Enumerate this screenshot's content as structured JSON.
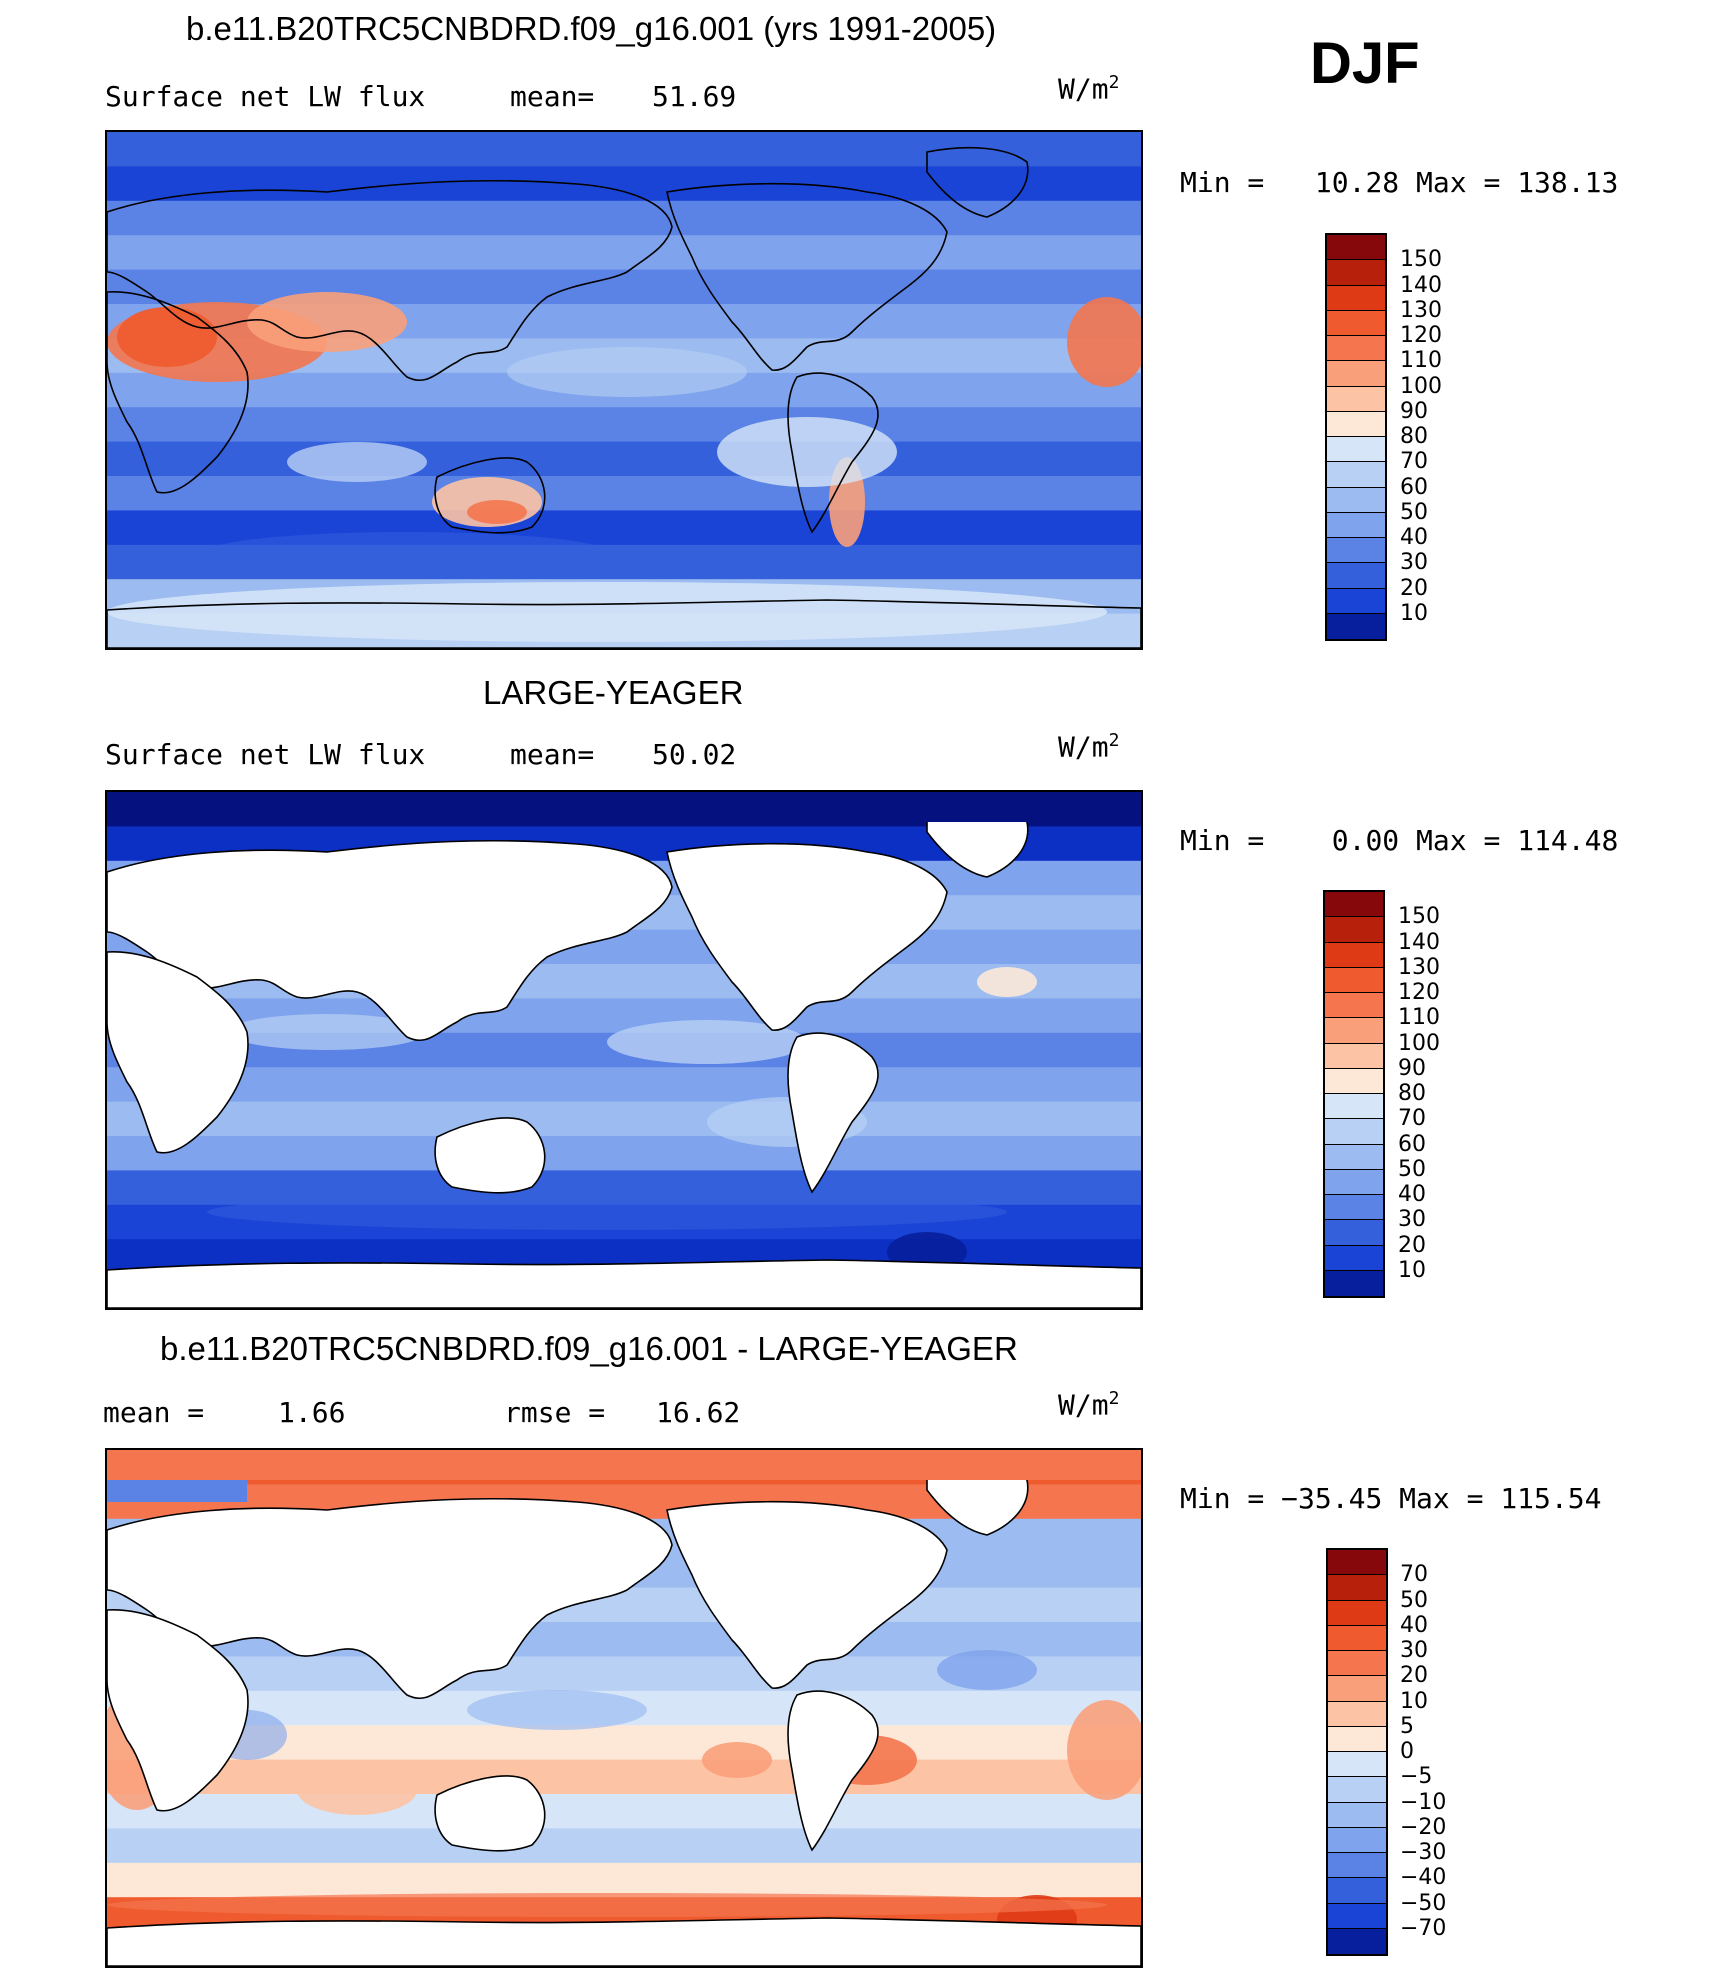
{
  "header": {
    "top_title": "b.e11.B20TRC5CNBDRD.f09_g16.001 (yrs 1991-2005)",
    "season": "DJF"
  },
  "colors": {
    "pos": [
      "#fde8d8",
      "#fcc3a4",
      "#f9a07a",
      "#f4754e",
      "#ef5a2e",
      "#de3a16",
      "#b7200a",
      "#86080a"
    ],
    "neg": [
      "#d6e6f8",
      "#b8d0f4",
      "#9cbcf1",
      "#7fa3ec",
      "#5b83e6",
      "#3460dc",
      "#1a44d6",
      "#0c2fc4",
      "#071f9c",
      "#04117e"
    ],
    "land": "#ffffff",
    "coast": "#000000"
  },
  "chart_data": [
    {
      "type": "heatmap",
      "panel": "model",
      "title": "",
      "field_label": "Surface net LW flux",
      "stat_label": "mean=",
      "stat_value": "51.69",
      "units": "W/m",
      "units_sup": "2",
      "min_label": "Min =",
      "min_value": "10.28",
      "max_label": "Max =",
      "max_value": "138.13",
      "colorbar_levels": [
        "150",
        "140",
        "130",
        "120",
        "110",
        "100",
        "90",
        "80",
        "70",
        "60",
        "50",
        "40",
        "30",
        "20",
        "10"
      ],
      "colorbar_colors": [
        "#86080a",
        "#b7200a",
        "#de3a16",
        "#ef5a2e",
        "#f4754e",
        "#f9a07a",
        "#fcc3a4",
        "#fde8d8",
        "#d6e6f8",
        "#b8d0f4",
        "#9cbcf1",
        "#7fa3ec",
        "#5b83e6",
        "#3460dc",
        "#1a44d6",
        "#071f9c"
      ],
      "land_masked": false
    },
    {
      "type": "heatmap",
      "panel": "obs",
      "title": "LARGE-YEAGER",
      "field_label": "Surface net LW flux",
      "stat_label": "mean=",
      "stat_value": "50.02",
      "units": "W/m",
      "units_sup": "2",
      "min_label": "Min =",
      "min_value": "0.00",
      "max_label": "Max =",
      "max_value": "114.48",
      "colorbar_levels": [
        "150",
        "140",
        "130",
        "120",
        "110",
        "100",
        "90",
        "80",
        "70",
        "60",
        "50",
        "40",
        "30",
        "20",
        "10"
      ],
      "colorbar_colors": [
        "#86080a",
        "#b7200a",
        "#de3a16",
        "#ef5a2e",
        "#f4754e",
        "#f9a07a",
        "#fcc3a4",
        "#fde8d8",
        "#d6e6f8",
        "#b8d0f4",
        "#9cbcf1",
        "#7fa3ec",
        "#5b83e6",
        "#3460dc",
        "#1a44d6",
        "#071f9c"
      ],
      "land_masked": true
    },
    {
      "type": "heatmap",
      "panel": "diff",
      "title": "b.e11.B20TRC5CNBDRD.f09_g16.001 - LARGE-YEAGER",
      "field_label": "mean =",
      "stat_label": "rmse =",
      "field_value": "1.66",
      "stat_value": "16.62",
      "units": "W/m",
      "units_sup": "2",
      "min_label": "Min =",
      "min_value": "−35.45",
      "max_label": "Max =",
      "max_value": "115.54",
      "colorbar_levels": [
        "70",
        "50",
        "40",
        "30",
        "20",
        "10",
        "5",
        "0",
        "−5",
        "−10",
        "−20",
        "−30",
        "−40",
        "−50",
        "−70"
      ],
      "colorbar_colors": [
        "#86080a",
        "#b7200a",
        "#de3a16",
        "#ef5a2e",
        "#f4754e",
        "#f9a07a",
        "#fcc3a4",
        "#fde8d8",
        "#d6e6f8",
        "#b8d0f4",
        "#9cbcf1",
        "#7fa3ec",
        "#5b83e6",
        "#3460dc",
        "#1a44d6",
        "#071f9c"
      ],
      "land_masked": true
    }
  ]
}
